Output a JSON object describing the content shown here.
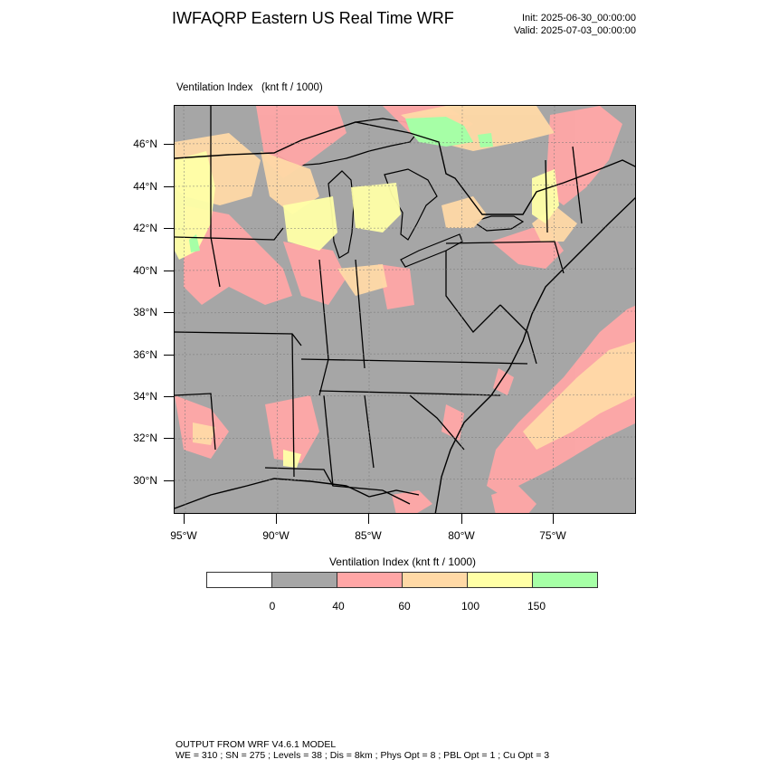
{
  "header": {
    "title": "IWFAQRP Eastern US Real Time WRF",
    "init": "Init: 2025-06-30_00:00:00",
    "valid": "Valid: 2025-07-03_00:00:00"
  },
  "field": {
    "name": "Ventilation Index",
    "units": "(knt ft / 1000)"
  },
  "map": {
    "lat_labels": [
      "46°N",
      "44°N",
      "42°N",
      "40°N",
      "38°N",
      "36°N",
      "34°N",
      "32°N",
      "30°N"
    ],
    "lon_labels": [
      "95°W",
      "90°W",
      "85°W",
      "80°W",
      "75°W"
    ],
    "colors": {
      "land_low": "#a6a6a6",
      "red": "#ffa6a6",
      "orange": "#ffd9a6",
      "yellow": "#ffffa6",
      "green": "#a6ffa6",
      "water": "#a6a6a6"
    }
  },
  "legend": {
    "title": "Ventilation Index  (knt ft / 1000)",
    "colors": [
      "#ffffff",
      "#a6a6a6",
      "#ffa6a6",
      "#ffd9a6",
      "#ffffa6",
      "#a6ffa6"
    ],
    "labels": [
      "0",
      "40",
      "60",
      "100",
      "150"
    ]
  },
  "footer": {
    "line1": "OUTPUT FROM WRF V4.6.1 MODEL",
    "line2": "WE = 310 ; SN = 275 ; Levels = 38 ; Dis = 8km ; Phys Opt = 8 ; PBL Opt = 1 ; Cu Opt = 3"
  }
}
